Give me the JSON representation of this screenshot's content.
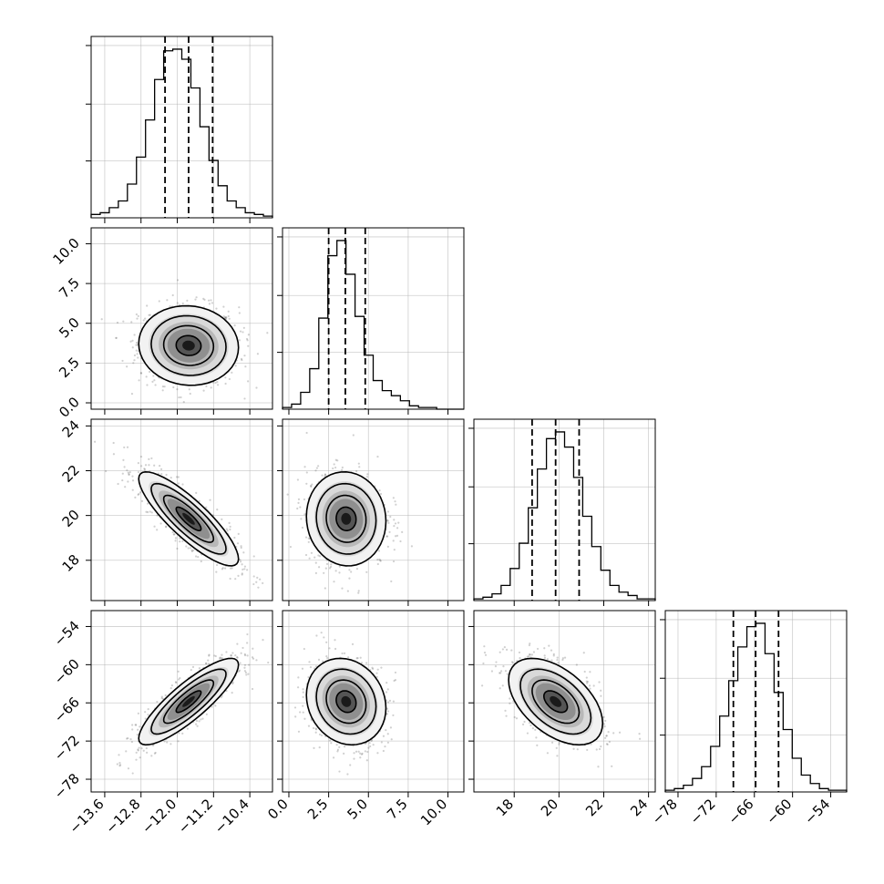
{
  "chart_data": {
    "type": "corner",
    "grid": true,
    "params": [
      {
        "range": [
          -13.9,
          -9.9
        ],
        "ticks": [
          -13.6,
          -12.8,
          -12.0,
          -11.2,
          -10.4
        ],
        "ticklabels": [
          "−13.6",
          "−12.8",
          "−12.0",
          "−11.2",
          "−10.4"
        ],
        "mean": -11.75,
        "sd": 0.55,
        "quantiles": [
          -12.27,
          -11.75,
          -11.22
        ]
      },
      {
        "range": [
          -0.4,
          11.0
        ],
        "ticks": [
          0.0,
          2.5,
          5.0,
          7.5,
          10.0
        ],
        "ticklabels": [
          "0.0",
          "2.5",
          "5.0",
          "7.5",
          "10.0"
        ],
        "mean": 3.6,
        "sd": 1.25,
        "quantiles": [
          2.5,
          3.55,
          4.8
        ]
      },
      {
        "range": [
          16.2,
          24.3
        ],
        "ticks": [
          18,
          20,
          22,
          24
        ],
        "ticklabels": [
          "18",
          "20",
          "22",
          "24"
        ],
        "mean": 19.85,
        "sd": 1.05,
        "quantiles": [
          18.8,
          19.85,
          20.9
        ]
      },
      {
        "range": [
          -80.0,
          -51.5
        ],
        "ticks": [
          -78,
          -72,
          -66,
          -60,
          -54
        ],
        "ticklabels": [
          "−78",
          "−72",
          "−66",
          "−60",
          "−54"
        ],
        "mean": -65.8,
        "sd": 3.4,
        "quantiles": [
          -69.3,
          -65.8,
          -62.2
        ]
      }
    ],
    "correlations": [
      {
        "pair": [
          0,
          1
        ],
        "r": -0.05
      },
      {
        "pair": [
          0,
          2
        ],
        "r": -0.85
      },
      {
        "pair": [
          1,
          2
        ],
        "r": -0.05
      },
      {
        "pair": [
          0,
          3
        ],
        "r": 0.85
      },
      {
        "pair": [
          1,
          3
        ],
        "r": -0.15
      },
      {
        "pair": [
          2,
          3
        ],
        "r": -0.5
      }
    ],
    "histograms": [
      {
        "param": 0,
        "bins": 20,
        "counts": [
          2,
          3,
          6,
          10,
          20,
          36,
          58,
          82,
          99,
          100,
          94,
          77,
          54,
          34,
          19,
          10,
          6,
          3,
          2,
          1
        ]
      },
      {
        "param": 1,
        "bins": 20,
        "counts": [
          1,
          3,
          10,
          24,
          54,
          91,
          100,
          80,
          55,
          32,
          17,
          11,
          8,
          5,
          2,
          1,
          1,
          0,
          0,
          0
        ]
      },
      {
        "param": 2,
        "bins": 20,
        "counts": [
          1,
          2,
          4,
          9,
          19,
          34,
          55,
          78,
          96,
          100,
          91,
          73,
          50,
          32,
          18,
          9,
          5,
          3,
          1,
          1
        ]
      },
      {
        "param": 3,
        "bins": 20,
        "counts": [
          1,
          2,
          4,
          8,
          15,
          27,
          45,
          66,
          86,
          98,
          100,
          82,
          59,
          37,
          20,
          10,
          5,
          2,
          1,
          1
        ]
      }
    ]
  }
}
